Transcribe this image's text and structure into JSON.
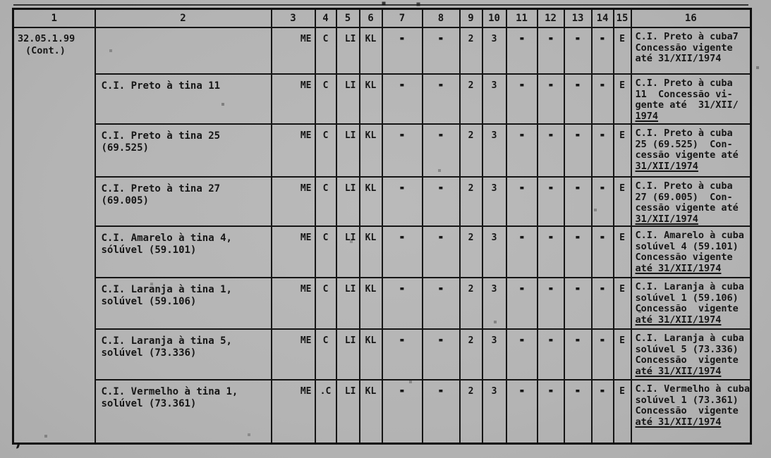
{
  "page": {
    "background_color": "#b5b5b5",
    "ink_color": "#161616",
    "type": "scanned typewritten concession table"
  },
  "table": {
    "headers": [
      "1",
      "2",
      "3",
      "4",
      "5",
      "6",
      "7",
      "8",
      "9",
      "10",
      "11",
      "12",
      "13",
      "14",
      "15",
      "16"
    ],
    "col1": {
      "code": "32.05.1.99",
      "cont": "(Cont.)"
    },
    "rows": [
      {
        "substance_lines": [],
        "values": [
          "ME",
          "C",
          "LI",
          "KL",
          "-",
          "-",
          "2",
          "3",
          "-",
          "-",
          "-",
          "-",
          "E"
        ],
        "desc_lines": [
          "C.I. Preto à cuba7",
          "Concessão vigente",
          "até 31/XII/1974"
        ],
        "underline_last": false
      },
      {
        "substance_lines": [
          "C.I. Preto à tina 11"
        ],
        "values": [
          "ME",
          "C",
          "LI",
          "KL",
          "-",
          "-",
          "2",
          "3",
          "-",
          "-",
          "-",
          "-",
          "E"
        ],
        "desc_lines": [
          "C.I. Preto à cuba",
          "11  Concessão vi-",
          "gente até  31/XII/",
          "1974"
        ],
        "underline_last": true
      },
      {
        "substance_lines": [
          "C.I. Preto à tina 25",
          "(69.525)"
        ],
        "values": [
          "ME",
          "C",
          "LI",
          "KL",
          "-",
          "-",
          "2",
          "3",
          "-",
          "-",
          "-",
          "-",
          "E"
        ],
        "desc_lines": [
          "C.I. Preto à cuba",
          "25 (69.525)  Con-",
          "cessão vigente até",
          "31/XII/1974"
        ],
        "underline_last": true
      },
      {
        "substance_lines": [
          "C.I. Preto à tina 27",
          "(69.005)"
        ],
        "values": [
          "ME",
          "C",
          "LI",
          "KL",
          "-",
          "-",
          "2",
          "3",
          "-",
          "-",
          "-",
          "-",
          "E"
        ],
        "desc_lines": [
          "C.I. Preto à cuba",
          "27 (69.005)  Con-",
          "cessão vigente até",
          "31/XII/1974"
        ],
        "underline_last": true
      },
      {
        "substance_lines": [
          "C.I. Amarelo à tina 4,",
          "sólúvel (59.101)"
        ],
        "values": [
          "ME",
          "C",
          "LI",
          "KL",
          "-",
          "-",
          "2",
          "3",
          "-",
          "-",
          "-",
          "-",
          "E"
        ],
        "desc_lines": [
          "C.I. Amarelo à cuba",
          "solúvel 4 (59.101)",
          "Concessão vigente",
          "até 31/XII/1974"
        ],
        "underline_last": true
      },
      {
        "substance_lines": [
          "C.I. Laranja à tina 1,",
          "solúvel (59.106)"
        ],
        "values": [
          "ME",
          "C",
          "LI",
          "KL",
          "-",
          "-",
          "2",
          "3",
          "-",
          "-",
          "-",
          "-",
          "E"
        ],
        "desc_lines": [
          "C.I. Laranja à cuba",
          "solúvel 1 (59.106)",
          "Concessão  vigente",
          "até 31/XII/1974"
        ],
        "underline_last": true
      },
      {
        "substance_lines": [
          "C.I. Laranja à tina 5,",
          "solúvel (73.336)"
        ],
        "values": [
          "ME",
          "C",
          "LI",
          "KL",
          "-",
          "-",
          "2",
          "3",
          "-",
          "-",
          "-",
          "-",
          "E"
        ],
        "desc_lines": [
          "C.I. Laranja à cuba",
          "solúvel 5 (73.336)",
          "Concessão  vigente",
          "até 31/XII/1974"
        ],
        "underline_last": true
      },
      {
        "substance_lines": [
          "C.I. Vermelho à tina 1,",
          "solúvel (73.361)"
        ],
        "values": [
          "ME",
          ".C",
          "LI",
          "KL",
          "-",
          "-",
          "2",
          "3",
          "-",
          "-",
          "-",
          "-",
          "E"
        ],
        "desc_lines": [
          "C.I. Vermelho à cuba",
          "solúvel 1 (73.361)",
          "Concessão  vigente",
          "até 31/XII/1974"
        ],
        "underline_last": true
      }
    ]
  }
}
